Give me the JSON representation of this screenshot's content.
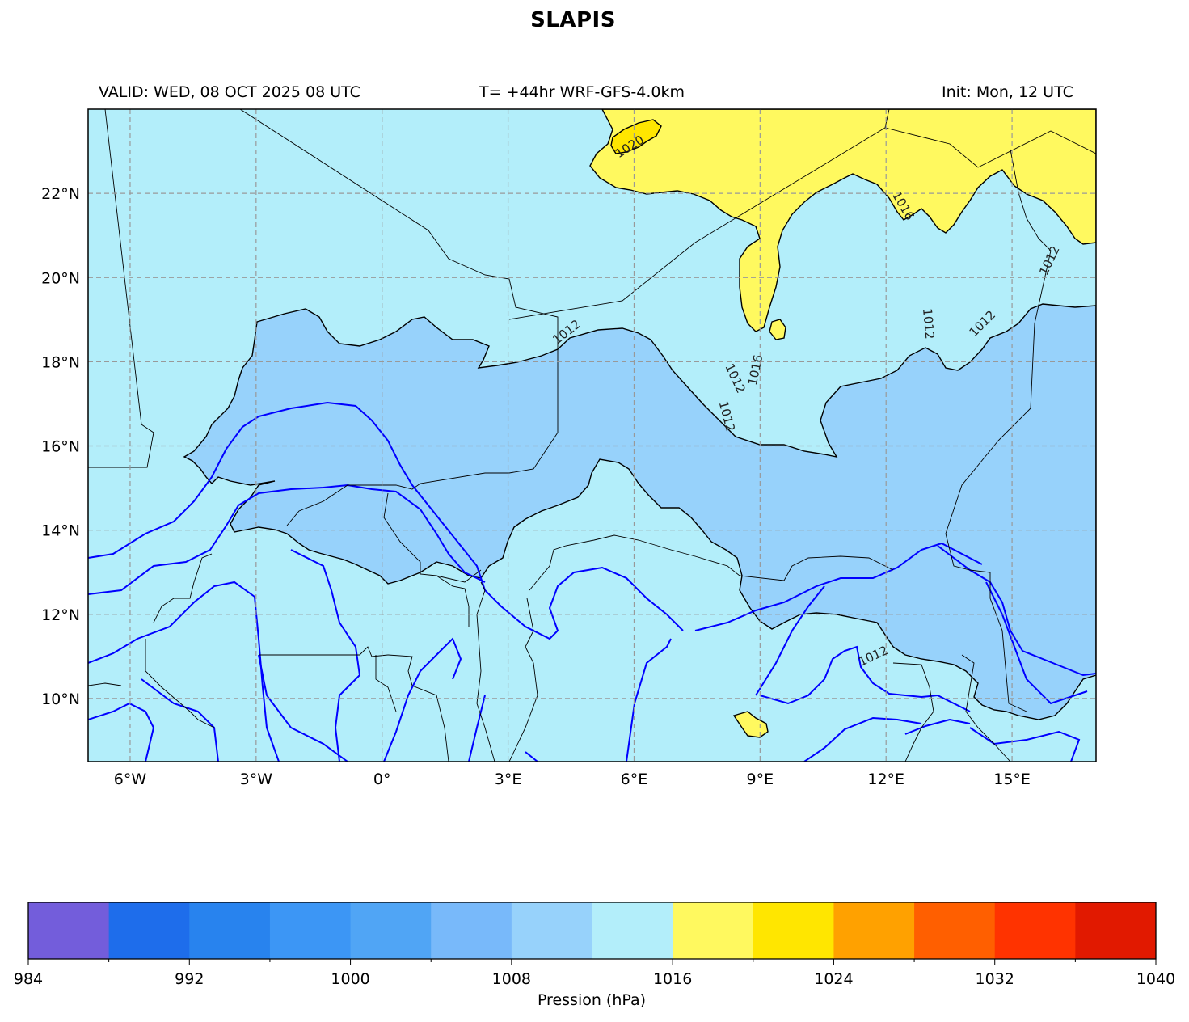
{
  "title": "SLAPIS",
  "header": {
    "valid": "VALID: WED, 08 OCT 2025 08 UTC",
    "forecast": "T= +44hr WRF-GFS-4.0km",
    "init": "Init: Mon, 12 UTC"
  },
  "map": {
    "lon_range": [
      -7,
      17
    ],
    "lat_range": [
      8.5,
      24
    ],
    "lon_ticks": [
      {
        "value": -6,
        "label": "6°W"
      },
      {
        "value": -3,
        "label": "3°W"
      },
      {
        "value": 0,
        "label": "0°"
      },
      {
        "value": 3,
        "label": "3°E"
      },
      {
        "value": 6,
        "label": "6°E"
      },
      {
        "value": 9,
        "label": "9°E"
      },
      {
        "value": 12,
        "label": "12°E"
      },
      {
        "value": 15,
        "label": "15°E"
      }
    ],
    "lat_ticks": [
      {
        "value": 22,
        "label": "22°N"
      },
      {
        "value": 20,
        "label": "20°N"
      },
      {
        "value": 18,
        "label": "18°N"
      },
      {
        "value": 16,
        "label": "16°N"
      },
      {
        "value": 14,
        "label": "14°N"
      },
      {
        "value": 12,
        "label": "12°N"
      },
      {
        "value": 10,
        "label": "10°N"
      }
    ],
    "grid": true,
    "contour_labels": [
      {
        "text": "1020",
        "lon": 5.9,
        "lat": 23.1,
        "angle": -32
      },
      {
        "text": "1016",
        "lon": 12.4,
        "lat": 21.7,
        "angle": 60
      },
      {
        "text": "1012",
        "lon": 15.9,
        "lat": 20.4,
        "angle": -65
      },
      {
        "text": "1012",
        "lon": 4.4,
        "lat": 18.7,
        "angle": -38
      },
      {
        "text": "1012",
        "lon": 8.4,
        "lat": 17.6,
        "angle": 65
      },
      {
        "text": "1016",
        "lon": 8.9,
        "lat": 17.8,
        "angle": -78
      },
      {
        "text": "1012",
        "lon": 8.2,
        "lat": 16.7,
        "angle": 75
      },
      {
        "text": "1012",
        "lon": 13.0,
        "lat": 18.9,
        "angle": 85
      },
      {
        "text": "1012",
        "lon": 14.3,
        "lat": 18.9,
        "angle": -45
      },
      {
        "text": "1012",
        "lon": 11.7,
        "lat": 11.0,
        "angle": -25
      }
    ],
    "colors": {
      "p1012_1016": "#b3eefa",
      "p1008_1012": "#97d2fb",
      "p1016_1020": "#fff95f",
      "p1020_1024": "#ffe600"
    }
  },
  "colorbar": {
    "label": "Pression (hPa)",
    "min": 984,
    "max": 1040,
    "step": 4,
    "colors": [
      "#735ddb",
      "#1e6deb",
      "#2883ee",
      "#3c96f5",
      "#50a5f5",
      "#78b9fa",
      "#97d2fb",
      "#b3eefa",
      "#fff95f",
      "#ffe600",
      "#ffa100",
      "#ff5f00",
      "#ff3300",
      "#e11900"
    ],
    "tick_labels": [
      "984",
      "992",
      "1000",
      "1008",
      "1016",
      "1024",
      "1032",
      "1040"
    ],
    "tick_values": [
      984,
      992,
      1000,
      1008,
      1016,
      1024,
      1032,
      1040
    ]
  }
}
